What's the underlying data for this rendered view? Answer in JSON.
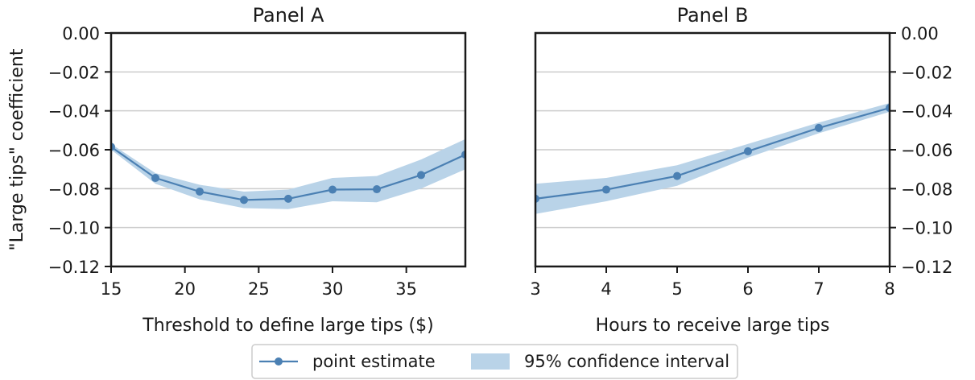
{
  "chart_data": [
    {
      "type": "line",
      "title": "Panel A",
      "xlabel": "Threshold to define large tips ($)",
      "ylabel": "\"Large tips\" coefficient",
      "xlim": [
        15,
        39
      ],
      "ylim": [
        -0.12,
        0.0
      ],
      "xticks": [
        "15",
        "20",
        "25",
        "30",
        "35"
      ],
      "yticks": [
        "0.00",
        "−0.02",
        "−0.04",
        "−0.06",
        "−0.08",
        "−0.10",
        "−0.12"
      ],
      "grid": "horizontal",
      "x": [
        15,
        18,
        21,
        24,
        27,
        30,
        33,
        36,
        39
      ],
      "series": [
        {
          "name": "point estimate",
          "values": [
            -0.0585,
            -0.0745,
            -0.0815,
            -0.0858,
            -0.0852,
            -0.0805,
            -0.0803,
            -0.073,
            -0.0625
          ]
        }
      ],
      "ci_lower": [
        -0.06,
        -0.0775,
        -0.0855,
        -0.09,
        -0.0905,
        -0.0865,
        -0.087,
        -0.08,
        -0.07
      ],
      "ci_upper": [
        -0.057,
        -0.072,
        -0.078,
        -0.0815,
        -0.0805,
        -0.0745,
        -0.0735,
        -0.065,
        -0.0545
      ]
    },
    {
      "type": "line",
      "title": "Panel B",
      "xlabel": "Hours to receive large tips",
      "ylabel": "",
      "xlim": [
        3,
        8
      ],
      "ylim": [
        -0.12,
        0.0
      ],
      "xticks": [
        "3",
        "4",
        "5",
        "6",
        "7",
        "8"
      ],
      "yticks": [
        "0.00",
        "−0.02",
        "−0.04",
        "−0.06",
        "−0.08",
        "−0.10",
        "−0.12"
      ],
      "grid": "horizontal",
      "x": [
        3,
        4,
        5,
        6,
        7,
        8
      ],
      "series": [
        {
          "name": "point estimate",
          "values": [
            -0.0852,
            -0.0805,
            -0.0735,
            -0.0608,
            -0.0488,
            -0.0385
          ]
        }
      ],
      "ci_lower": [
        -0.093,
        -0.0865,
        -0.0785,
        -0.064,
        -0.0515,
        -0.0405
      ],
      "ci_upper": [
        -0.0775,
        -0.0745,
        -0.068,
        -0.057,
        -0.046,
        -0.036
      ]
    }
  ],
  "legend": {
    "position": "bottom-center",
    "items": [
      {
        "label": "point estimate",
        "kind": "line-marker"
      },
      {
        "label": "95% confidence interval",
        "kind": "band"
      }
    ]
  },
  "colors": {
    "line": "#4b80b3",
    "band": "#b9d3e8",
    "grid": "#cccccc",
    "axis": "#1a1a1a"
  }
}
